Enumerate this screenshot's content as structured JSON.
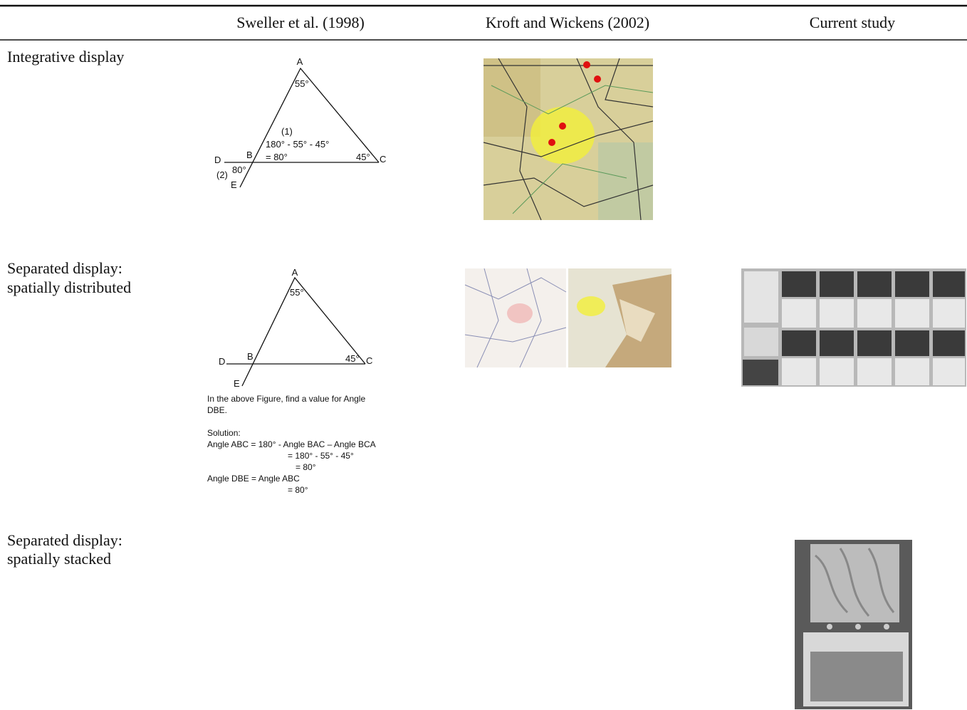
{
  "table": {
    "header": [
      "Sweller et al. (1998)",
      "Kroft and Wickens (2002)",
      "Current study"
    ],
    "rows": [
      {
        "label": [
          "Integrative display"
        ]
      },
      {
        "label": [
          "Separated display:",
          "spatially distributed"
        ]
      },
      {
        "label": [
          "Separated display:",
          "spatially stacked"
        ]
      }
    ]
  },
  "diagrams": {
    "integrative": {
      "labels": [
        "A",
        "55°",
        "(1)",
        "180°  - 55° - 45°",
        "= 80°",
        "D",
        "B",
        "45°",
        "C",
        "80°",
        "(2)",
        "E"
      ]
    },
    "separated": {
      "labels": [
        "A",
        "55°",
        "D",
        "B",
        "45°",
        "C",
        "E"
      ],
      "caption": [
        "In the above Figure, find a value for Angle",
        "DBE.",
        "Solution:",
        "Angle ABC = 180° - Angle BAC – Angle BCA",
        "= 180°  - 55° - 45°",
        "= 80°",
        "Angle DBE = Angle ABC",
        "= 80°"
      ]
    }
  }
}
